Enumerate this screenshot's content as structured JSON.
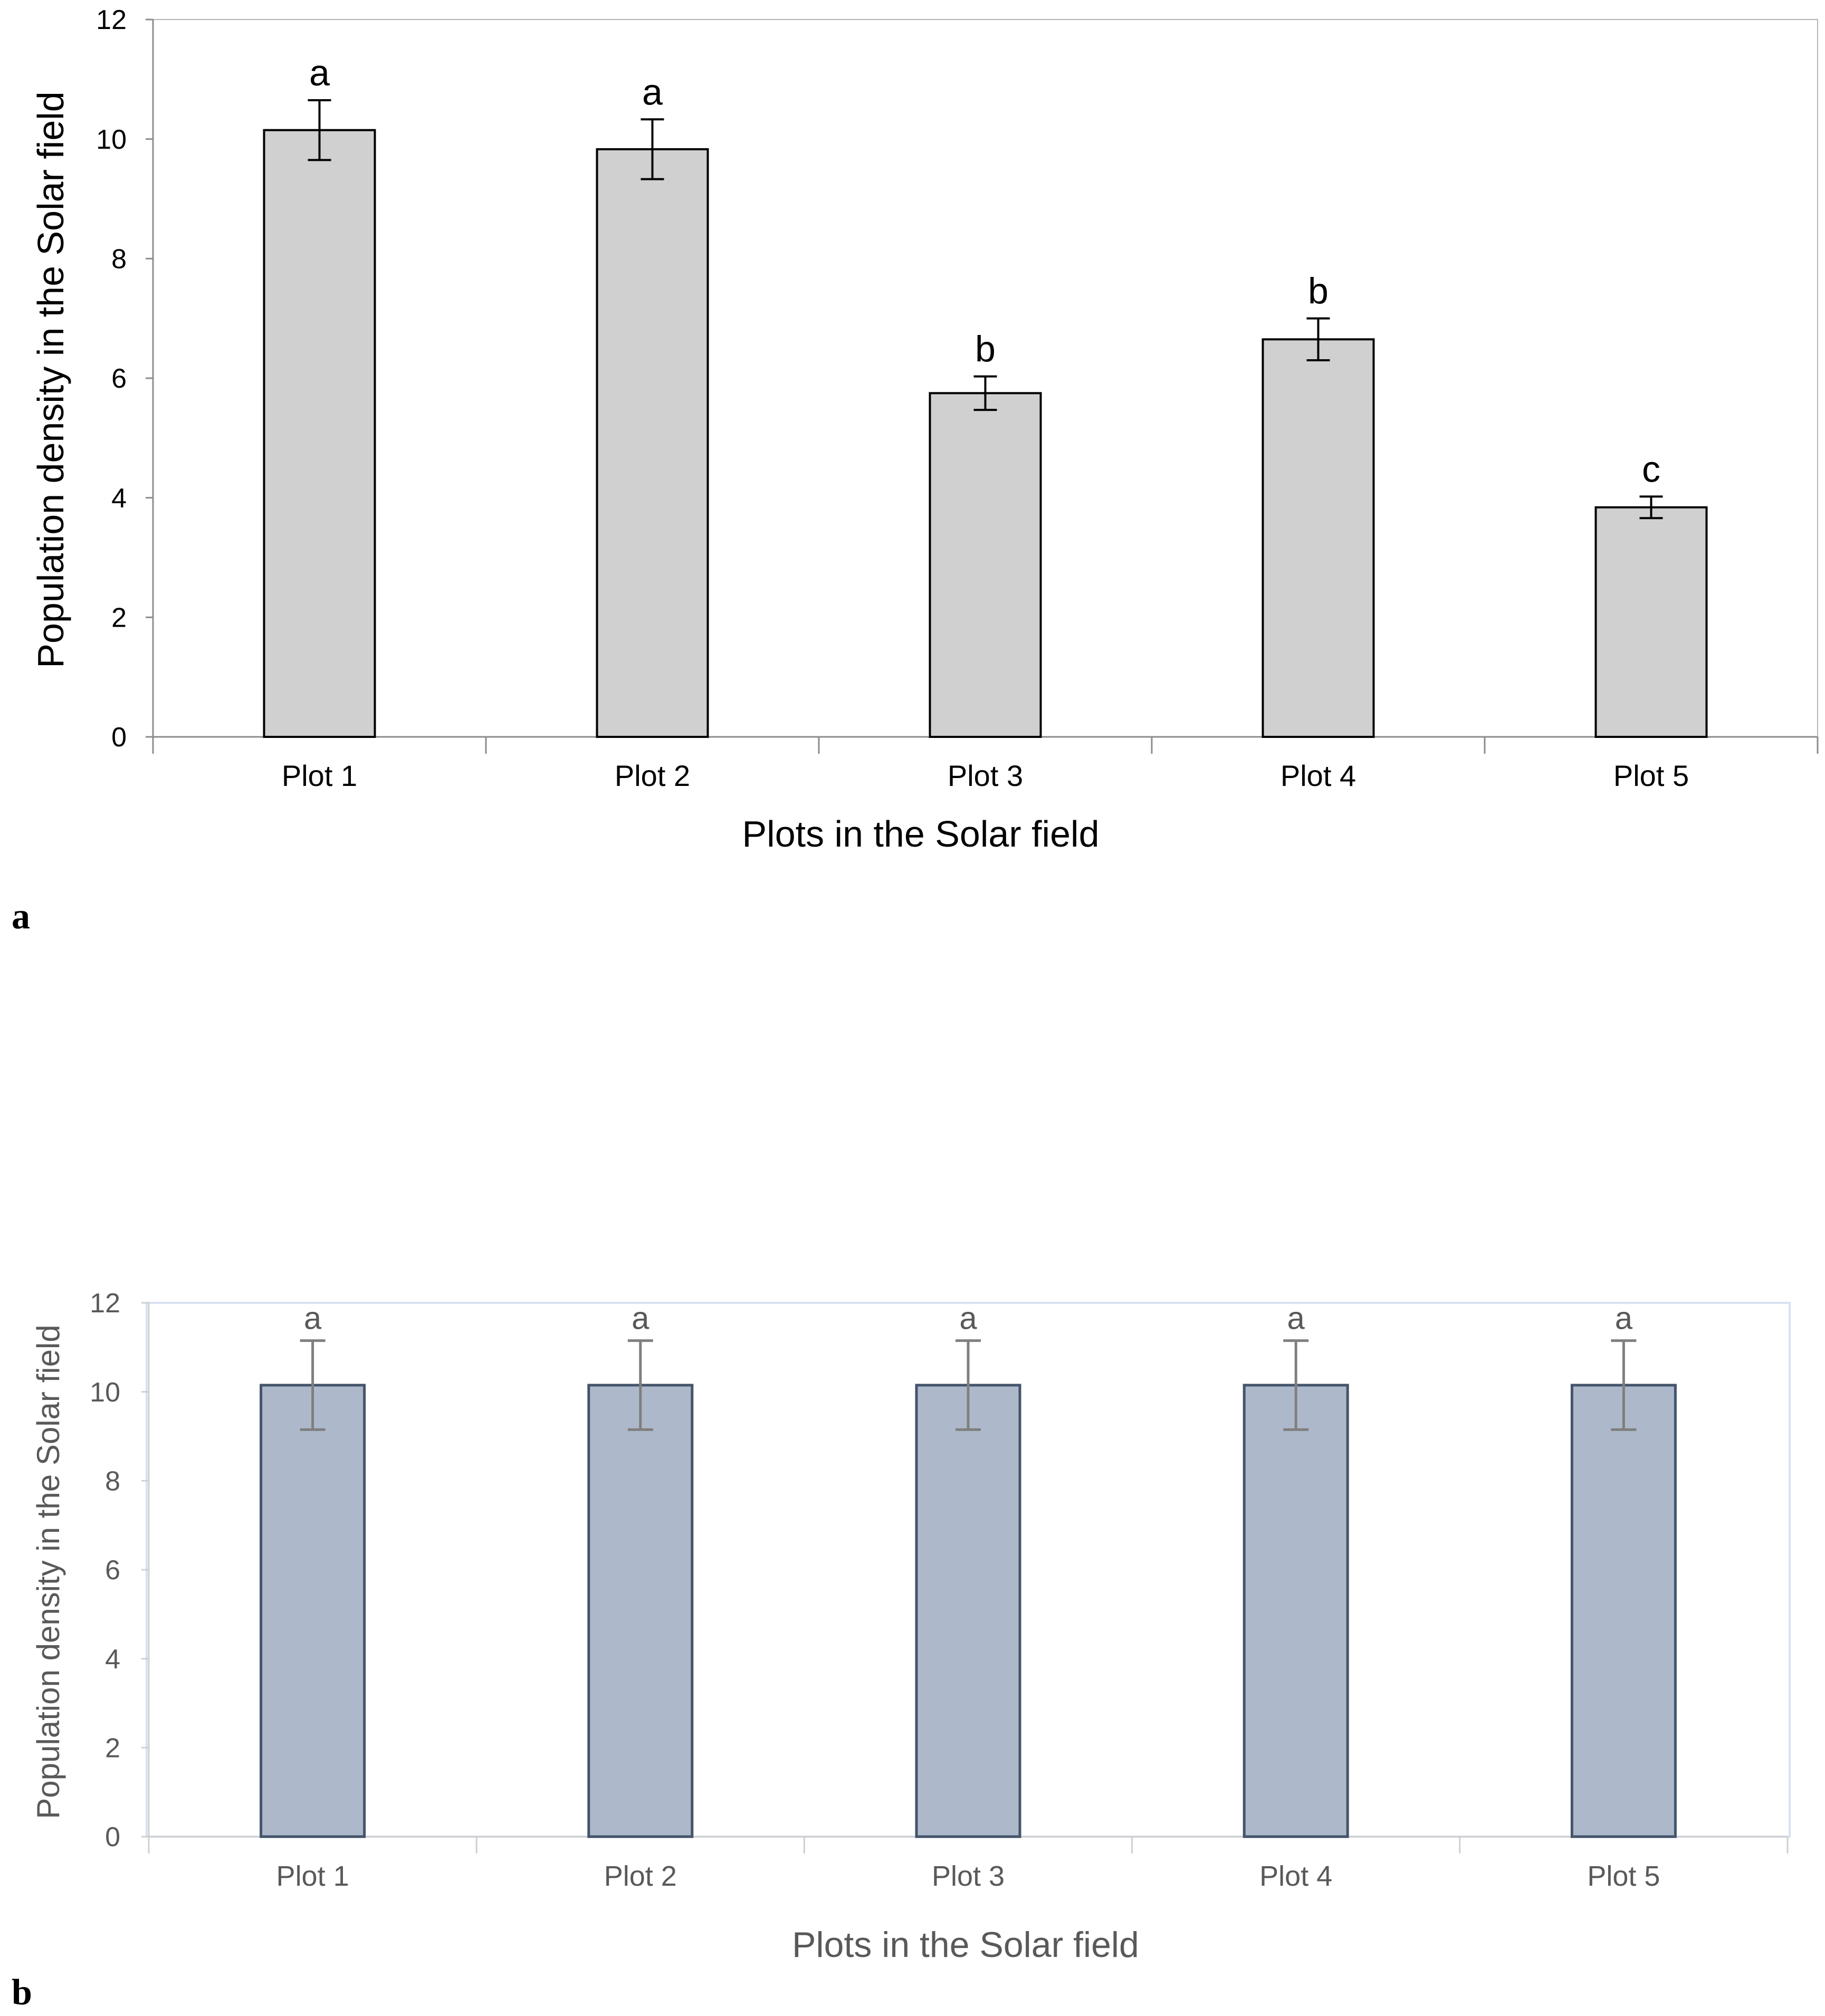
{
  "figure": {
    "panels": [
      {
        "letter": "a"
      },
      {
        "letter": "b"
      }
    ]
  },
  "chart_data": [
    {
      "type": "bar",
      "panel": "a",
      "title": "",
      "categories": [
        "Plot 1",
        "Plot 2",
        "Plot 3",
        "Plot 4",
        "Plot 5"
      ],
      "values": [
        10.15,
        9.83,
        5.75,
        6.65,
        3.84
      ],
      "error": [
        0.5,
        0.5,
        0.28,
        0.35,
        0.18
      ],
      "significance_letters": [
        "a",
        "a",
        "b",
        "b",
        "c"
      ],
      "xlabel": "Plots in the Solar field",
      "ylabel": "Population density in the Solar field",
      "ylim": [
        0,
        12
      ],
      "yticks": [
        "0",
        "2",
        "4",
        "6",
        "8",
        "10",
        "12"
      ],
      "grid": false,
      "colors": {
        "bar_fill": "#d0d0d0",
        "bar_stroke": "#000000",
        "axis": "#8c8c8c",
        "text": "#000000",
        "error": "#000000"
      }
    },
    {
      "type": "bar",
      "panel": "b",
      "title": "",
      "categories": [
        "Plot 1",
        "Plot 2",
        "Plot 3",
        "Plot 4",
        "Plot 5"
      ],
      "values": [
        10.15,
        10.15,
        10.15,
        10.15,
        10.15
      ],
      "error": [
        1.0,
        1.0,
        1.0,
        1.0,
        1.0
      ],
      "significance_letters": [
        "a",
        "a",
        "a",
        "a",
        "a"
      ],
      "xlabel": "Plots in the Solar field",
      "ylabel": "Population density in the Solar field",
      "ylim": [
        0,
        12
      ],
      "yticks": [
        "0",
        "2",
        "4",
        "6",
        "8",
        "10",
        "12"
      ],
      "grid": false,
      "colors": {
        "bar_fill": "#adb9ca",
        "bar_stroke": "#44546a",
        "axis": "#d0d0d0",
        "text": "#595959",
        "error": "#7f7f7f",
        "frame": "#d9e1f2"
      }
    }
  ]
}
